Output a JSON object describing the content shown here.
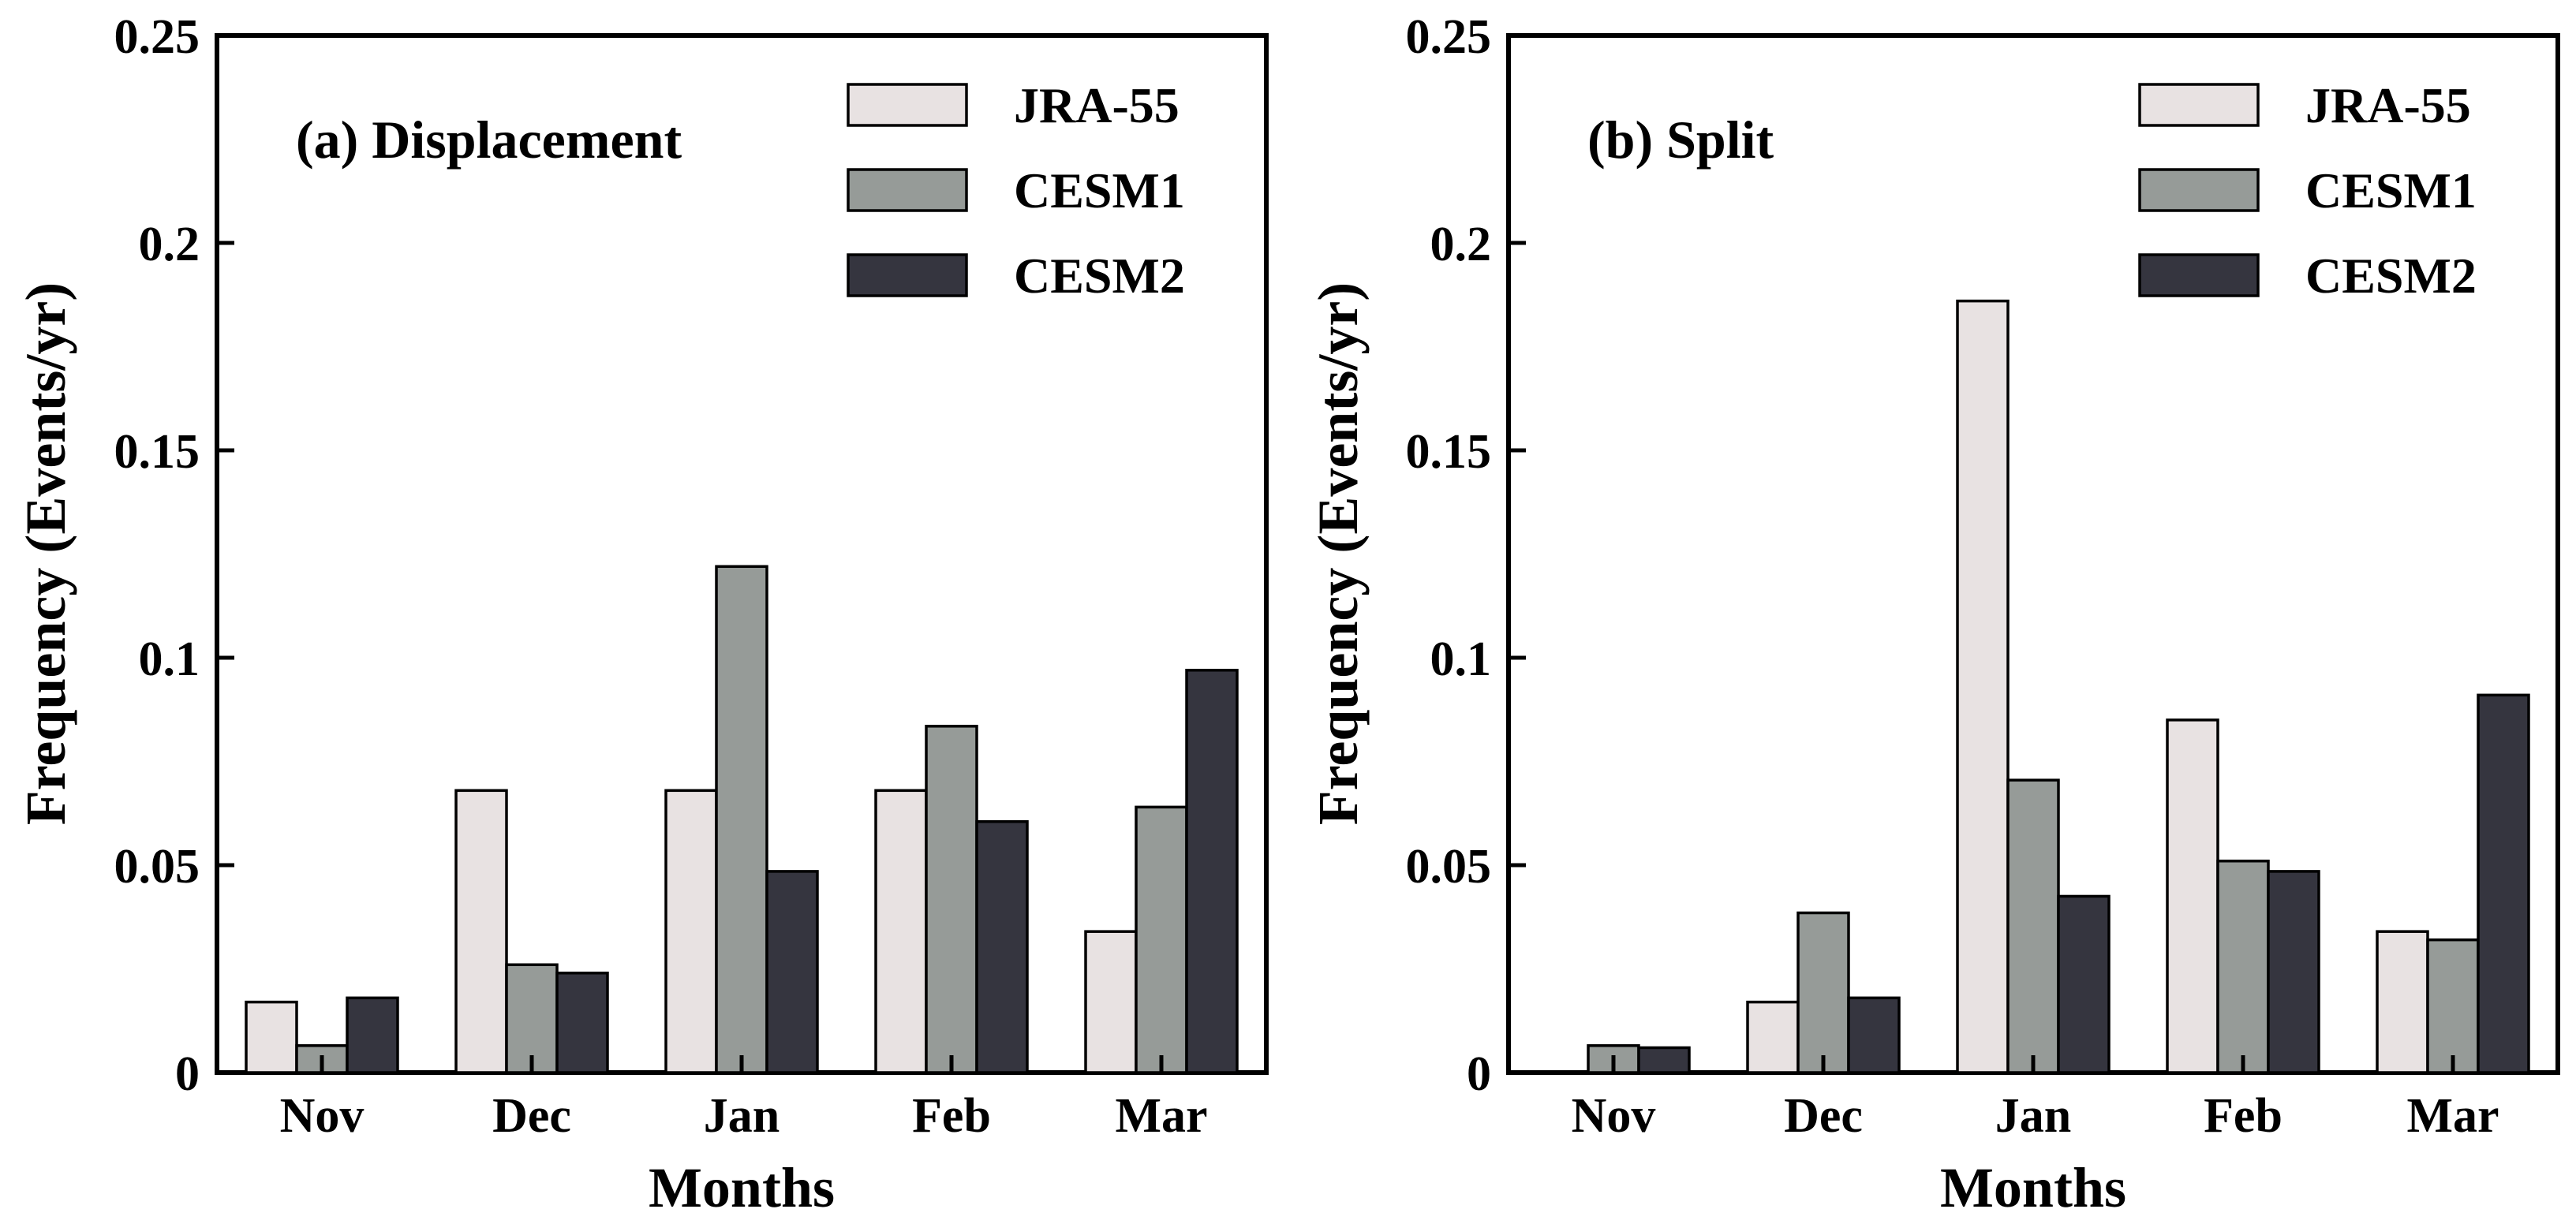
{
  "chart_data": [
    {
      "type": "bar",
      "title": "(a) Displacement",
      "xlabel": "Months",
      "ylabel": "Frequency (Events/yr)",
      "categories": [
        "Nov",
        "Dec",
        "Jan",
        "Feb",
        "Mar"
      ],
      "ylim": [
        0,
        0.25
      ],
      "yticks": [
        0,
        0.05,
        0.1,
        0.15,
        0.2,
        0.25
      ],
      "ytick_labels": [
        "0",
        "0.05",
        "0.1",
        "0.15",
        "0.2",
        "0.25"
      ],
      "legend_position": "top-right",
      "grid": false,
      "series": [
        {
          "name": "JRA-55",
          "color": "#e8e2e2",
          "values": [
            0.017,
            0.068,
            0.068,
            0.068,
            0.034
          ]
        },
        {
          "name": "CESM1",
          "color": "#969b98",
          "values": [
            0.0065,
            0.026,
            0.122,
            0.0835,
            0.064
          ]
        },
        {
          "name": "CESM2",
          "color": "#35353f",
          "values": [
            0.018,
            0.024,
            0.0485,
            0.0605,
            0.097
          ]
        }
      ]
    },
    {
      "type": "bar",
      "title": "(b) Split",
      "xlabel": "Months",
      "ylabel": "Frequency (Events/yr)",
      "categories": [
        "Nov",
        "Dec",
        "Jan",
        "Feb",
        "Mar"
      ],
      "ylim": [
        0,
        0.25
      ],
      "yticks": [
        0,
        0.05,
        0.1,
        0.15,
        0.2,
        0.25
      ],
      "ytick_labels": [
        "0",
        "0.05",
        "0.1",
        "0.15",
        "0.2",
        "0.25"
      ],
      "legend_position": "top-right",
      "grid": false,
      "series": [
        {
          "name": "JRA-55",
          "color": "#e8e2e2",
          "values": [
            0,
            0.017,
            0.186,
            0.085,
            0.034
          ]
        },
        {
          "name": "CESM1",
          "color": "#969b98",
          "values": [
            0.0065,
            0.0385,
            0.0705,
            0.051,
            0.032
          ]
        },
        {
          "name": "CESM2",
          "color": "#35353f",
          "values": [
            0.006,
            0.018,
            0.0425,
            0.0485,
            0.091
          ]
        }
      ]
    }
  ]
}
